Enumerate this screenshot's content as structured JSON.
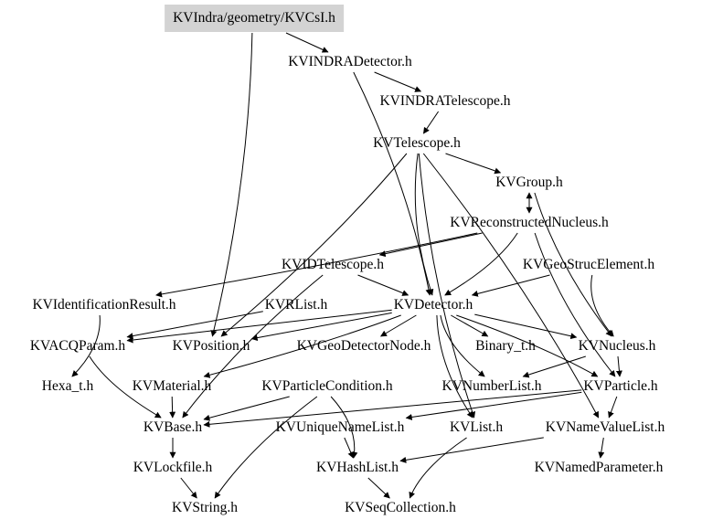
{
  "title": "KVIndra/geometry/KVCsI.h",
  "colors": {
    "root_fill": "#d3d3d3",
    "edge": "#000000",
    "text": "#000000",
    "background": "#ffffff"
  },
  "nodes": {
    "root": "KVIndra/geometry/KVCsI.h",
    "indraDetector": "KVINDRADetector.h",
    "indraTelescope": "KVINDRATelescope.h",
    "telescope": "KVTelescope.h",
    "group": "KVGroup.h",
    "recNucleus": "KVReconstructedNucleus.h",
    "idTelescope": "KVIDTelescope.h",
    "geoStruc": "KVGeoStrucElement.h",
    "identResult": "KVIdentificationResult.h",
    "rList": "KVRList.h",
    "detector": "KVDetector.h",
    "acqParam": "KVACQParam.h",
    "position": "KVPosition.h",
    "geoDetNode": "KVGeoDetectorNode.h",
    "binary": "Binary_t.h",
    "nucleus": "KVNucleus.h",
    "hexa": "Hexa_t.h",
    "material": "KVMaterial.h",
    "partCond": "KVParticleCondition.h",
    "numberList": "KVNumberList.h",
    "particle": "KVParticle.h",
    "base": "KVBase.h",
    "uniqueNameList": "KVUniqueNameList.h",
    "list": "KVList.h",
    "nameValueList": "KVNameValueList.h",
    "lockfile": "KVLockfile.h",
    "hashList": "KVHashList.h",
    "namedParam": "KVNamedParameter.h",
    "string": "KVString.h",
    "seqCollection": "KVSeqCollection.h"
  },
  "edges": [
    [
      "root",
      "indraDetector"
    ],
    [
      "root",
      "position"
    ],
    [
      "indraDetector",
      "indraTelescope"
    ],
    [
      "indraDetector",
      "detector"
    ],
    [
      "indraTelescope",
      "telescope"
    ],
    [
      "telescope",
      "group"
    ],
    [
      "telescope",
      "detector"
    ],
    [
      "telescope",
      "position"
    ],
    [
      "telescope",
      "list"
    ],
    [
      "telescope",
      "nameValueList"
    ],
    [
      "group",
      "recNucleus"
    ],
    [
      "recNucleus",
      "group"
    ],
    [
      "group",
      "nucleus"
    ],
    [
      "recNucleus",
      "identResult"
    ],
    [
      "recNucleus",
      "idTelescope"
    ],
    [
      "recNucleus",
      "detector"
    ],
    [
      "recNucleus",
      "particle"
    ],
    [
      "idTelescope",
      "detector"
    ],
    [
      "idTelescope",
      "base"
    ],
    [
      "geoStruc",
      "detector"
    ],
    [
      "geoStruc",
      "nucleus"
    ],
    [
      "rList",
      "acqParam"
    ],
    [
      "detector",
      "acqParam"
    ],
    [
      "detector",
      "position"
    ],
    [
      "detector",
      "geoDetNode"
    ],
    [
      "detector",
      "binary"
    ],
    [
      "detector",
      "nucleus"
    ],
    [
      "detector",
      "material"
    ],
    [
      "detector",
      "numberList"
    ],
    [
      "detector",
      "particle"
    ],
    [
      "detector",
      "list"
    ],
    [
      "identResult",
      "hexa"
    ],
    [
      "acqParam",
      "base"
    ],
    [
      "nucleus",
      "particle"
    ],
    [
      "nucleus",
      "numberList"
    ],
    [
      "material",
      "base"
    ],
    [
      "partCond",
      "base"
    ],
    [
      "partCond",
      "hashList"
    ],
    [
      "partCond",
      "string"
    ],
    [
      "particle",
      "base"
    ],
    [
      "particle",
      "uniqueNameList"
    ],
    [
      "particle",
      "nameValueList"
    ],
    [
      "base",
      "lockfile"
    ],
    [
      "uniqueNameList",
      "hashList"
    ],
    [
      "list",
      "seqCollection"
    ],
    [
      "nameValueList",
      "hashList"
    ],
    [
      "nameValueList",
      "namedParam"
    ],
    [
      "lockfile",
      "string"
    ],
    [
      "hashList",
      "seqCollection"
    ]
  ]
}
